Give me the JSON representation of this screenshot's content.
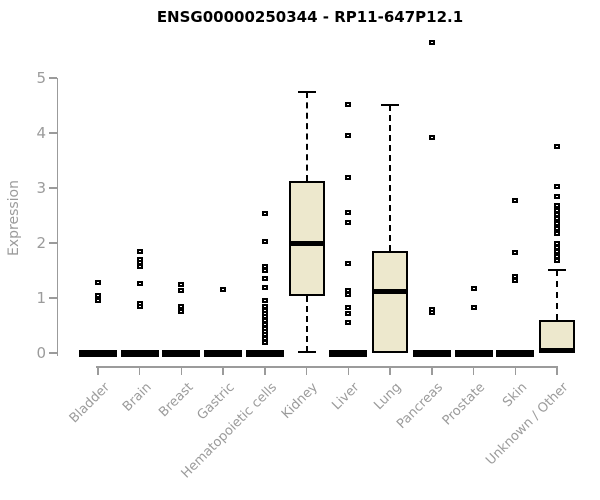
{
  "colors": {
    "box_fill": "#EDE8CD",
    "box_border": "#000000",
    "median": "#000000",
    "axis": "#9b9b9b",
    "tick_label": "#9b9b9b",
    "title": "#000000",
    "background": "#ffffff"
  },
  "chart_data": {
    "type": "boxplot",
    "title": "ENSG00000250344 - RP11-647P12.1",
    "xlabel": "",
    "ylabel": "Expression",
    "ylim": [
      0,
      5
    ],
    "yticks": [
      0,
      1,
      2,
      3,
      4,
      5
    ],
    "grid": "off",
    "legend": "none",
    "categories": [
      "Bladder",
      "Brain",
      "Breast",
      "Gastric",
      "Hematopoietic cells",
      "Kidney",
      "Liver",
      "Lung",
      "Pancreas",
      "Prostate",
      "Skin",
      "Unknown / Other"
    ],
    "series": [
      {
        "name": "Bladder",
        "q1": 0,
        "median": 0,
        "q3": 0,
        "whisker_low": 0,
        "whisker_high": 0,
        "outliers": [
          1.28,
          1.05,
          0.96
        ]
      },
      {
        "name": "Brain",
        "q1": 0,
        "median": 0,
        "q3": 0,
        "whisker_low": 0,
        "whisker_high": 0,
        "outliers": [
          1.85,
          1.7,
          1.64,
          1.57,
          1.27,
          0.9,
          0.84
        ]
      },
      {
        "name": "Breast",
        "q1": 0,
        "median": 0,
        "q3": 0,
        "whisker_low": 0,
        "whisker_high": 0,
        "outliers": [
          1.24,
          1.13,
          0.84,
          0.75
        ]
      },
      {
        "name": "Gastric",
        "q1": 0,
        "median": 0,
        "q3": 0,
        "whisker_low": 0,
        "whisker_high": 0,
        "outliers": [
          1.15
        ]
      },
      {
        "name": "Hematopoietic cells",
        "q1": 0,
        "median": 0,
        "q3": 0,
        "whisker_low": 0,
        "whisker_high": 0,
        "outliers": [
          2.53,
          2.02,
          1.58,
          1.5,
          1.36,
          1.2,
          0.95,
          0.84,
          0.78,
          0.72,
          0.66,
          0.6,
          0.51,
          0.45,
          0.39,
          0.33,
          0.27,
          0.2
        ]
      },
      {
        "name": "Kidney",
        "q1": 1.03,
        "median": 2.0,
        "q3": 3.13,
        "whisker_low": 0.02,
        "whisker_high": 4.75,
        "outliers": []
      },
      {
        "name": "Liver",
        "q1": 0,
        "median": 0,
        "q3": 0,
        "whisker_low": 0,
        "whisker_high": 0,
        "outliers": [
          4.51,
          3.96,
          3.2,
          2.56,
          2.38,
          1.62,
          1.13,
          1.07,
          0.82,
          0.71,
          0.55
        ]
      },
      {
        "name": "Lung",
        "q1": 0,
        "median": 1.12,
        "q3": 1.85,
        "whisker_low": 0,
        "whisker_high": 4.51,
        "outliers": []
      },
      {
        "name": "Pancreas",
        "q1": 0,
        "median": 0,
        "q3": 0,
        "whisker_low": 0,
        "whisker_high": 0,
        "outliers": [
          5.64,
          3.91,
          0.79,
          0.73
        ]
      },
      {
        "name": "Prostate",
        "q1": 0,
        "median": 0,
        "q3": 0,
        "whisker_low": 0,
        "whisker_high": 0,
        "outliers": [
          1.18,
          0.82
        ]
      },
      {
        "name": "Skin",
        "q1": 0,
        "median": 0,
        "q3": 0,
        "whisker_low": 0,
        "whisker_high": 0,
        "outliers": [
          2.77,
          1.83,
          1.4,
          1.31
        ]
      },
      {
        "name": "Unknown / Other",
        "q1": 0,
        "median": 0.04,
        "q3": 0.6,
        "whisker_low": 0,
        "whisker_high": 1.51,
        "outliers": [
          3.75,
          3.02,
          2.85,
          2.69,
          2.6,
          2.51,
          2.44,
          2.35,
          2.27,
          2.18,
          2.0,
          1.92,
          1.84,
          1.75,
          1.69
        ]
      }
    ]
  }
}
